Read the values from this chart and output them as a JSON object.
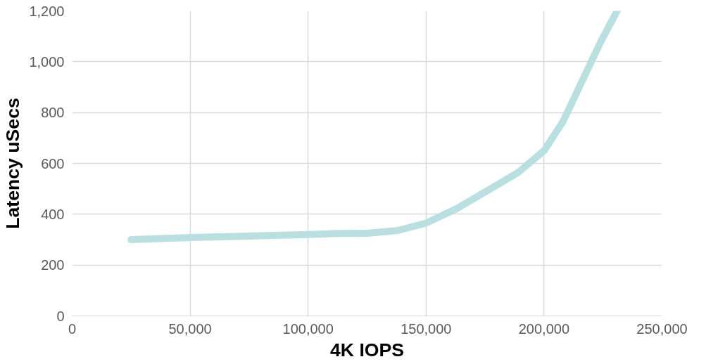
{
  "chart_data": {
    "type": "line",
    "xlabel": "4K IOPS",
    "ylabel": "Latency uSecs",
    "x": [
      25000,
      50000,
      75000,
      100000,
      112000,
      125000,
      138000,
      150000,
      163000,
      176000,
      189000,
      200000,
      208000,
      216000,
      224000,
      231000
    ],
    "series": [
      {
        "color": "#b9dfe0",
        "values": [
          300,
          308,
          314,
          320,
          324,
          325,
          336,
          365,
          422,
          493,
          564,
          650,
          764,
          921,
          1078,
          1200
        ]
      }
    ],
    "xlim": [
      0,
      250000
    ],
    "xticks": [
      {
        "value": 0,
        "label": "0"
      },
      {
        "value": 50000,
        "label": "50,000"
      },
      {
        "value": 100000,
        "label": "100,000"
      },
      {
        "value": 150000,
        "label": "150,000"
      },
      {
        "value": 200000,
        "label": "200,000"
      },
      {
        "value": 250000,
        "label": "250,000"
      }
    ],
    "ylim": [
      0,
      1200
    ],
    "yticks": [
      {
        "value": 0,
        "label": "0"
      },
      {
        "value": 200,
        "label": "200"
      },
      {
        "value": 400,
        "label": "400"
      },
      {
        "value": 600,
        "label": "600"
      },
      {
        "value": 800,
        "label": "800"
      },
      {
        "value": 1000,
        "label": "1,000"
      },
      {
        "value": 1200,
        "label": "1,200"
      }
    ],
    "grid": true,
    "marker": "none",
    "line_style": "solid"
  }
}
